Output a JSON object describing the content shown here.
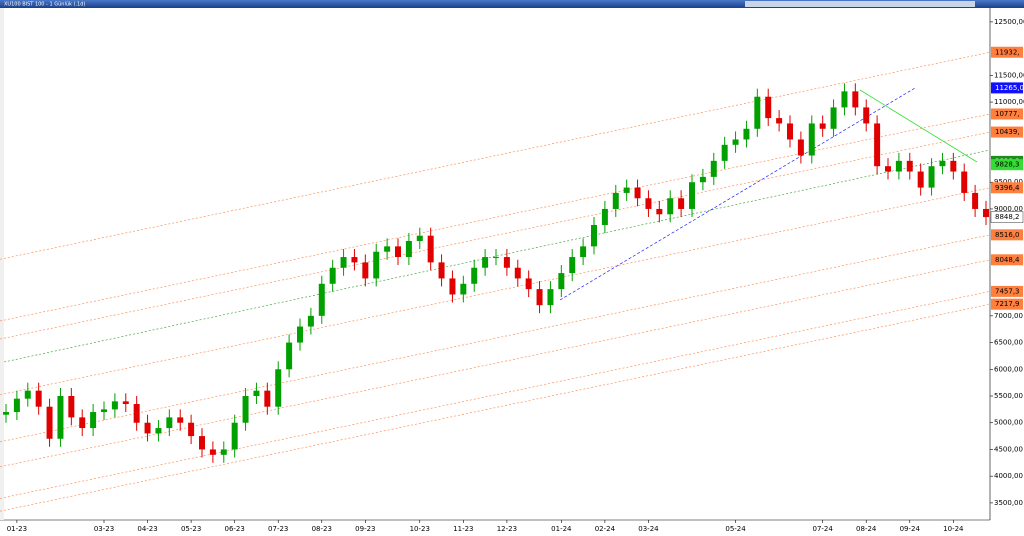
{
  "chart_data": {
    "type": "candlestick",
    "title": "XU100 BIST 100 - 1 Günlük (.1d)",
    "up_color": "#00a000",
    "down_color": "#e00000",
    "xlim": [
      0,
      90
    ],
    "ylim": [
      3180,
      12760
    ],
    "xticks": [
      {
        "value": 1,
        "label": "01-23"
      },
      {
        "value": 9,
        "label": "03-23"
      },
      {
        "value": 13,
        "label": "04-23"
      },
      {
        "value": 17,
        "label": "05-23"
      },
      {
        "value": 21,
        "label": "06-23"
      },
      {
        "value": 25,
        "label": "07-23"
      },
      {
        "value": 29,
        "label": "08-23"
      },
      {
        "value": 33,
        "label": "09-23"
      },
      {
        "value": 38,
        "label": "10-23"
      },
      {
        "value": 42,
        "label": "11-23"
      },
      {
        "value": 46,
        "label": "12-23"
      },
      {
        "value": 51,
        "label": "01-24"
      },
      {
        "value": 55,
        "label": "02-24"
      },
      {
        "value": 59,
        "label": "03-24"
      },
      {
        "value": 67,
        "label": "05-24"
      },
      {
        "value": 75,
        "label": "07-24"
      },
      {
        "value": 79,
        "label": "08-24"
      },
      {
        "value": 83,
        "label": "09-24"
      },
      {
        "value": 87,
        "label": "10-24"
      }
    ],
    "yticks": [
      {
        "value": 12500,
        "label": "12500,00"
      },
      {
        "value": 11500,
        "label": "11500,00"
      },
      {
        "value": 11000,
        "label": "11000,00"
      },
      {
        "value": 9500,
        "label": "9500,00"
      },
      {
        "value": 9000,
        "label": "9000,00"
      },
      {
        "value": 7000,
        "label": "7000,00"
      },
      {
        "value": 6500,
        "label": "6500,00"
      },
      {
        "value": 6000,
        "label": "6000,00"
      },
      {
        "value": 5500,
        "label": "5500,00"
      },
      {
        "value": 5000,
        "label": "5000,00"
      },
      {
        "value": 4500,
        "label": "4500,00"
      },
      {
        "value": 4000,
        "label": "4000,00"
      },
      {
        "value": 3500,
        "label": "3500,00"
      }
    ],
    "open": [
      5150,
      5200,
      5450,
      5600,
      5300,
      4700,
      5500,
      5100,
      4900,
      5200,
      5250,
      5400,
      5350,
      5000,
      4800,
      4900,
      5100,
      5000,
      4750,
      4500,
      4400,
      4500,
      5000,
      5500,
      5600,
      5300,
      6000,
      6500,
      6800,
      7000,
      7600,
      7900,
      8100,
      8000,
      7700,
      8200,
      8300,
      8100,
      8400,
      8500,
      8000,
      7700,
      7400,
      7600,
      7900,
      8100,
      8100,
      7900,
      7700,
      7500,
      7200,
      7500,
      7800,
      8100,
      8300,
      8700,
      9000,
      9300,
      9400,
      9200,
      9000,
      8900,
      9200,
      9000,
      9500,
      9600,
      9900,
      10200,
      10300,
      10500,
      11100,
      10700,
      10600,
      10300,
      10000,
      10600,
      10500,
      10900,
      11200,
      10900,
      10600,
      9800,
      9700,
      9900,
      9700,
      9400,
      9800,
      9900,
      9700,
      9300,
      9000
    ],
    "high": [
      5350,
      5600,
      5750,
      5750,
      5450,
      5650,
      5650,
      5250,
      5350,
      5400,
      5550,
      5550,
      5500,
      5150,
      5050,
      5250,
      5250,
      5150,
      4900,
      4650,
      4650,
      5150,
      5650,
      5750,
      5750,
      6150,
      6650,
      6950,
      7150,
      7750,
      8050,
      8250,
      8250,
      8150,
      8350,
      8450,
      8450,
      8550,
      8650,
      8650,
      8150,
      7850,
      7750,
      8050,
      8250,
      8250,
      8250,
      8050,
      7850,
      7650,
      7650,
      7950,
      8250,
      8450,
      8850,
      9150,
      9450,
      9550,
      9550,
      9350,
      9150,
      9350,
      9350,
      9650,
      9750,
      10050,
      10350,
      10450,
      10650,
      11250,
      11250,
      10850,
      10750,
      10450,
      10750,
      10750,
      11050,
      11350,
      11350,
      11050,
      10750,
      9950,
      10050,
      10050,
      9850,
      9950,
      10050,
      10050,
      9850,
      9450,
      9150
    ],
    "low": [
      5000,
      5050,
      5300,
      5150,
      4550,
      4550,
      4950,
      4750,
      4750,
      5050,
      5100,
      5200,
      4850,
      4650,
      4650,
      4750,
      4850,
      4600,
      4350,
      4250,
      4250,
      4350,
      4850,
      5350,
      5150,
      5150,
      5850,
      6350,
      6650,
      6850,
      7450,
      7750,
      7850,
      7550,
      7550,
      8050,
      7950,
      7950,
      8250,
      7850,
      7550,
      7250,
      7250,
      7450,
      7750,
      7950,
      7750,
      7550,
      7350,
      7050,
      7050,
      7350,
      7650,
      7950,
      8150,
      8550,
      8850,
      9150,
      9050,
      8850,
      8750,
      8750,
      8850,
      8850,
      9350,
      9450,
      9750,
      10050,
      10150,
      10350,
      10550,
      10450,
      10150,
      9850,
      9850,
      10350,
      10350,
      10750,
      10750,
      10450,
      9650,
      9550,
      9550,
      9550,
      9250,
      9250,
      9650,
      9550,
      9150,
      8850,
      8700
    ],
    "close": [
      5200,
      5450,
      5600,
      5300,
      4700,
      5500,
      5100,
      4900,
      5200,
      5250,
      5400,
      5350,
      5000,
      4800,
      4900,
      5100,
      5000,
      4750,
      4500,
      4400,
      4500,
      5000,
      5500,
      5600,
      5300,
      6000,
      6500,
      6800,
      7000,
      7600,
      7900,
      8100,
      8000,
      7700,
      8200,
      8300,
      8100,
      8400,
      8500,
      8000,
      7700,
      7400,
      7600,
      7900,
      8100,
      8100,
      7900,
      7700,
      7500,
      7200,
      7500,
      7800,
      8100,
      8300,
      8700,
      9000,
      9300,
      9400,
      9200,
      9000,
      8900,
      9200,
      9000,
      9500,
      9600,
      9900,
      10200,
      10300,
      10500,
      11100,
      10700,
      10600,
      10300,
      10000,
      10600,
      10500,
      10900,
      11200,
      10900,
      10600,
      9800,
      9700,
      9900,
      9700,
      9400,
      9800,
      9900,
      9700,
      9300,
      9000,
      8848
    ],
    "price_levels": [
      {
        "value": 11932,
        "label": "11932,",
        "color": "#ff7f3f",
        "channel": true
      },
      {
        "value": 11265,
        "label": "11265,0",
        "color": "#1010ff",
        "channel": false
      },
      {
        "value": 10777,
        "label": "10777,",
        "color": "#ff7f3f",
        "channel": true
      },
      {
        "value": 10439,
        "label": "10439,",
        "color": "#ff7f3f",
        "channel": true
      },
      {
        "value": 9890,
        "label": "9890,0",
        "color": "#1a8f1a",
        "channel": false
      },
      {
        "value": 9828.3,
        "label": "9828,3",
        "color": "#33dd33",
        "channel": false
      },
      {
        "value": 9396.4,
        "label": "9396,4",
        "color": "#ff7f3f",
        "channel": true
      },
      {
        "value": 8848.2,
        "label": "8848,2",
        "color": "#ffffff",
        "channel": false
      },
      {
        "value": 8516.0,
        "label": "8516,0",
        "color": "#ff7f3f",
        "channel": true
      },
      {
        "value": 8048.4,
        "label": "8048,4",
        "color": "#ff7f3f",
        "channel": true
      },
      {
        "value": 7457.3,
        "label": "7457,3",
        "color": "#ff7f3f",
        "channel": true
      },
      {
        "value": 7217.9,
        "label": "7217,9",
        "color": "#ff7f3f",
        "channel": true
      }
    ]
  }
}
